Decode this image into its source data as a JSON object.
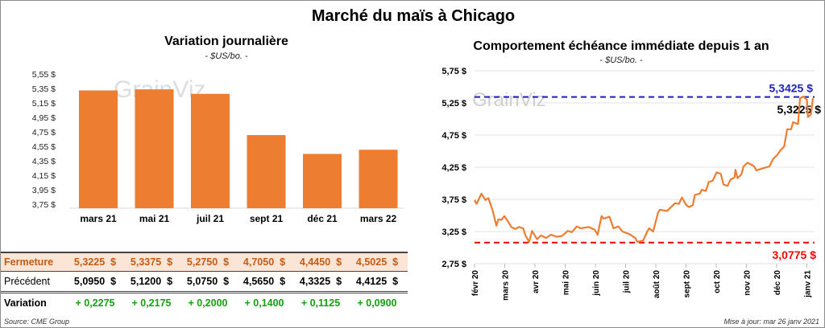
{
  "title": "Marché du maïs à Chicago",
  "left": {
    "title": "Variation journalière",
    "subtitle": "- $US/bo. -",
    "table": {
      "columns": [
        "mars 21",
        "mai 21",
        "juil 21",
        "sept 21",
        "déc 21",
        "mars 22"
      ],
      "rows": [
        {
          "label": "Fermeture",
          "values": [
            "5,3225  $",
            "5,3375  $",
            "5,2750  $",
            "4,7050  $",
            "4,4450  $",
            "4,5025  $"
          ]
        },
        {
          "label": "Précédent",
          "values": [
            "5,0950  $",
            "5,1200  $",
            "5,0750  $",
            "4,5650  $",
            "4,3325  $",
            "4,4125  $"
          ]
        },
        {
          "label": "Variation",
          "values": [
            "+ 0,2275",
            "+ 0,2175",
            "+ 0,2000",
            "+ 0,1400",
            "+ 0,1125",
            "+ 0,0900"
          ]
        }
      ]
    },
    "source": "Source: CME Group"
  },
  "right": {
    "title": "Comportement  échéance immédiate depuis 1 an",
    "subtitle": "- $US/bo. -",
    "updated": "Mise à jour: mar 26 janv 2021"
  },
  "watermark": "GrainViz",
  "colors": {
    "bar": "#ed7d31",
    "line": "#ed7d31",
    "max": "#1f1fbf",
    "min": "#ff0000",
    "fermeture_bg": "#fbe5d6",
    "fermeture_text": "#c55a11",
    "variation_text": "#13a10e"
  },
  "chart_data": [
    {
      "type": "bar",
      "title": "Variation journalière",
      "subtitle": "- $US/bo. -",
      "categories": [
        "mars 21",
        "mai 21",
        "juil 21",
        "sept 21",
        "déc 21",
        "mars 22"
      ],
      "values": [
        5.3225,
        5.3375,
        5.275,
        4.705,
        4.445,
        4.5025
      ],
      "ylim": [
        3.75,
        5.55
      ],
      "yticks": [
        "5,55 $",
        "5,35 $",
        "5,15 $",
        "4,95 $",
        "4,75 $",
        "4,55 $",
        "4,35 $",
        "4,15 $",
        "3,95 $",
        "3,75 $"
      ],
      "grid": false
    },
    {
      "type": "line",
      "title": "Comportement  échéance immédiate depuis 1 an",
      "subtitle": "- $US/bo. -",
      "ylim": [
        2.75,
        5.75
      ],
      "yticks": [
        "5,75 $",
        "5,25 $",
        "4,75 $",
        "4,25 $",
        "3,75 $",
        "3,25 $",
        "2,75 $"
      ],
      "xticks": [
        "févr 20",
        "mars 20",
        "avr 20",
        "mai 20",
        "juin 20",
        "juil 20",
        "août 20",
        "sept 20",
        "oct 20",
        "nov 20",
        "déc 20",
        "janv 21"
      ],
      "grid": true,
      "max_line": {
        "value": 5.3425,
        "label": "5,3425 $"
      },
      "min_line": {
        "value": 3.0775,
        "label": "3,0775 $"
      },
      "last_label": "5,3225 $",
      "series": [
        [
          "2020-02-01",
          3.74
        ],
        [
          "2020-02-03",
          3.68
        ],
        [
          "2020-02-08",
          3.84
        ],
        [
          "2020-02-12",
          3.74
        ],
        [
          "2020-02-15",
          3.77
        ],
        [
          "2020-02-19",
          3.59
        ],
        [
          "2020-02-23",
          3.34
        ],
        [
          "2020-02-25",
          3.44
        ],
        [
          "2020-02-28",
          3.43
        ],
        [
          "2020-03-02",
          3.49
        ],
        [
          "2020-03-06",
          3.4
        ],
        [
          "2020-03-09",
          3.32
        ],
        [
          "2020-03-13",
          3.29
        ],
        [
          "2020-03-17",
          3.32
        ],
        [
          "2020-03-21",
          3.3
        ],
        [
          "2020-03-23",
          3.2
        ],
        [
          "2020-03-27",
          3.09
        ],
        [
          "2020-03-30",
          3.26
        ],
        [
          "2020-04-04",
          3.13
        ],
        [
          "2020-04-08",
          3.19
        ],
        [
          "2020-04-13",
          3.15
        ],
        [
          "2020-04-18",
          3.2
        ],
        [
          "2020-04-24",
          3.17
        ],
        [
          "2020-04-29",
          3.18
        ],
        [
          "2020-05-05",
          3.26
        ],
        [
          "2020-05-09",
          3.24
        ],
        [
          "2020-05-14",
          3.33
        ],
        [
          "2020-05-18",
          3.3
        ],
        [
          "2020-05-26",
          3.32
        ],
        [
          "2020-06-01",
          3.28
        ],
        [
          "2020-06-04",
          3.2
        ],
        [
          "2020-06-08",
          3.49
        ],
        [
          "2020-06-10",
          3.45
        ],
        [
          "2020-06-16",
          3.48
        ],
        [
          "2020-06-20",
          3.3
        ],
        [
          "2020-06-25",
          3.33
        ],
        [
          "2020-06-29",
          3.25
        ],
        [
          "2020-07-06",
          3.21
        ],
        [
          "2020-07-12",
          3.15
        ],
        [
          "2020-07-14",
          3.09
        ],
        [
          "2020-07-20",
          3.11
        ],
        [
          "2020-07-24",
          3.25
        ],
        [
          "2020-07-26",
          3.3
        ],
        [
          "2020-07-30",
          3.25
        ],
        [
          "2020-08-04",
          3.55
        ],
        [
          "2020-08-06",
          3.59
        ],
        [
          "2020-08-13",
          3.57
        ],
        [
          "2020-08-17",
          3.63
        ],
        [
          "2020-08-21",
          3.69
        ],
        [
          "2020-08-25",
          3.68
        ],
        [
          "2020-08-28",
          3.78
        ],
        [
          "2020-09-01",
          3.67
        ],
        [
          "2020-09-04",
          3.63
        ],
        [
          "2020-09-08",
          3.66
        ],
        [
          "2020-09-10",
          3.82
        ],
        [
          "2020-09-15",
          3.84
        ],
        [
          "2020-09-17",
          3.9
        ],
        [
          "2020-09-21",
          3.88
        ],
        [
          "2020-09-24",
          4.02
        ],
        [
          "2020-09-28",
          4.04
        ],
        [
          "2020-10-02",
          4.17
        ],
        [
          "2020-10-06",
          4.15
        ],
        [
          "2020-10-09",
          3.98
        ],
        [
          "2020-10-13",
          3.96
        ],
        [
          "2020-10-16",
          4.06
        ],
        [
          "2020-10-20",
          4.09
        ],
        [
          "2020-10-21",
          4.21
        ],
        [
          "2020-10-23",
          4.08
        ],
        [
          "2020-10-27",
          4.14
        ],
        [
          "2020-10-29",
          4.26
        ],
        [
          "2020-11-02",
          4.32
        ],
        [
          "2020-11-06",
          4.29
        ],
        [
          "2020-11-09",
          4.26
        ],
        [
          "2020-11-11",
          4.2
        ],
        [
          "2020-11-15",
          4.22
        ],
        [
          "2020-11-19",
          4.24
        ],
        [
          "2020-11-24",
          4.26
        ],
        [
          "2020-11-28",
          4.38
        ],
        [
          "2020-12-02",
          4.44
        ],
        [
          "2020-12-05",
          4.51
        ],
        [
          "2020-12-09",
          4.57
        ],
        [
          "2020-12-12",
          4.84
        ],
        [
          "2020-12-16",
          4.84
        ],
        [
          "2020-12-18",
          4.95
        ],
        [
          "2020-12-23",
          4.92
        ],
        [
          "2020-12-25",
          5.32
        ],
        [
          "2020-12-28",
          5.35
        ],
        [
          "2021-01-01",
          5.3
        ],
        [
          "2021-01-02",
          5.03
        ],
        [
          "2021-01-05",
          5.07
        ],
        [
          "2021-01-07",
          5.3225
        ]
      ]
    }
  ]
}
